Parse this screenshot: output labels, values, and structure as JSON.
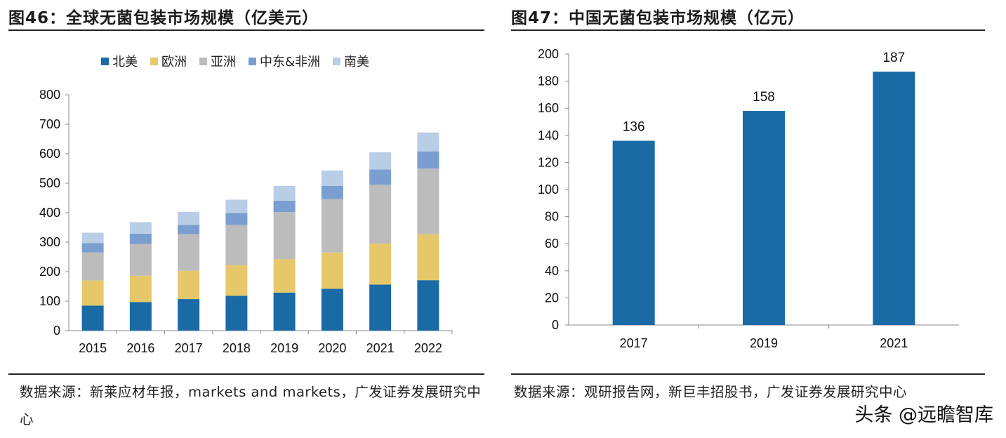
{
  "left_figure": {
    "title": "图46：全球无菌包装市场规模（亿美元）",
    "source_line": "数据来源：新莱应材年报，markets and markets，广发证券发展研究中心"
  },
  "right_figure": {
    "title": "图47：中国无菌包装市场规模（亿元）",
    "source_line": "数据来源：观研报告网，新巨丰招股书，广发证券发展研究中心"
  },
  "watermark": "头条 @远瞻智库",
  "colors": {
    "north_america": "#1a6aa6",
    "europe": "#e6c86a",
    "asia": "#bcbcbc",
    "middle_east_africa": "#7b9ed0",
    "south_america": "#b9cde6",
    "china_bar": "#1a6aa6"
  },
  "chart_data": [
    {
      "type": "bar",
      "stacked": true,
      "title": "",
      "categories": [
        "2015",
        "2016",
        "2017",
        "2018",
        "2019",
        "2020",
        "2021",
        "2022"
      ],
      "series": [
        {
          "name": "北美",
          "values": [
            85,
            97,
            107,
            118,
            129,
            142,
            156,
            171
          ]
        },
        {
          "name": "欧洲",
          "values": [
            85,
            89,
            96,
            104,
            113,
            123,
            139,
            156
          ]
        },
        {
          "name": "亚洲",
          "values": [
            95,
            108,
            124,
            136,
            160,
            181,
            200,
            223
          ]
        },
        {
          "name": "中东&非洲",
          "values": [
            32,
            35,
            32,
            41,
            39,
            45,
            52,
            58
          ]
        },
        {
          "name": "南美",
          "values": [
            35,
            39,
            44,
            45,
            50,
            52,
            58,
            64
          ]
        }
      ],
      "ylim": [
        0,
        800
      ],
      "yticks": [
        "0",
        "100",
        "200",
        "300",
        "400",
        "500",
        "600",
        "700",
        "800"
      ],
      "legend_position": "top",
      "grid": false
    },
    {
      "type": "bar",
      "title": "",
      "categories": [
        "2017",
        "2019",
        "2021"
      ],
      "values": [
        136,
        158,
        187
      ],
      "data_labels": [
        "136",
        "158",
        "187"
      ],
      "ylim": [
        0,
        200
      ],
      "yticks": [
        "0",
        "20",
        "40",
        "60",
        "80",
        "100",
        "120",
        "140",
        "160",
        "180",
        "200"
      ],
      "grid": false
    }
  ]
}
